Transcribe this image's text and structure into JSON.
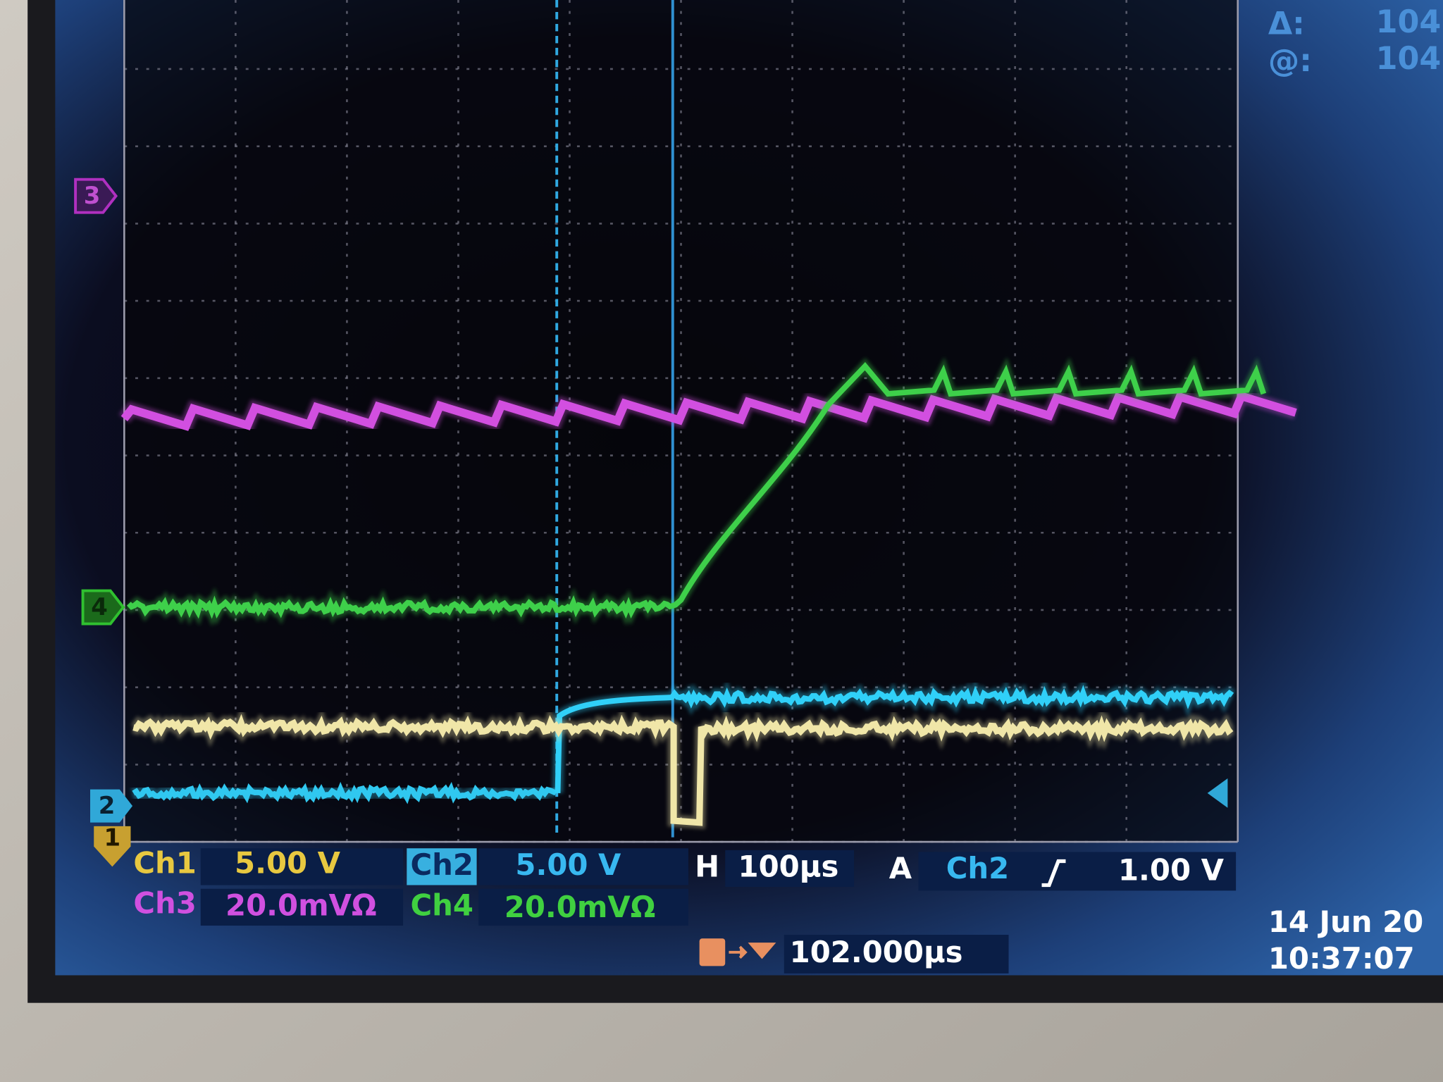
{
  "cursor_readout": {
    "delta_label": "Δ:",
    "delta_value": "104",
    "at_label": "@:",
    "at_value": "104"
  },
  "channel_markers": [
    "3",
    "4",
    "2",
    "1"
  ],
  "readouts": {
    "ch1": {
      "label": "Ch1",
      "scale": "5.00 V"
    },
    "ch2": {
      "label": "Ch2",
      "scale": "5.00 V"
    },
    "ch3": {
      "label": "Ch3",
      "scale": "20.0mVΩ"
    },
    "ch4": {
      "label": "Ch4",
      "scale": "20.0mVΩ"
    }
  },
  "horizontal": {
    "label": "H",
    "scale": "100µs"
  },
  "trigger": {
    "label": "A",
    "source": "Ch2",
    "level": "1.00 V"
  },
  "trigger_position": "102.000µs",
  "date": "14 Jun 20",
  "time": "10:37:07"
}
